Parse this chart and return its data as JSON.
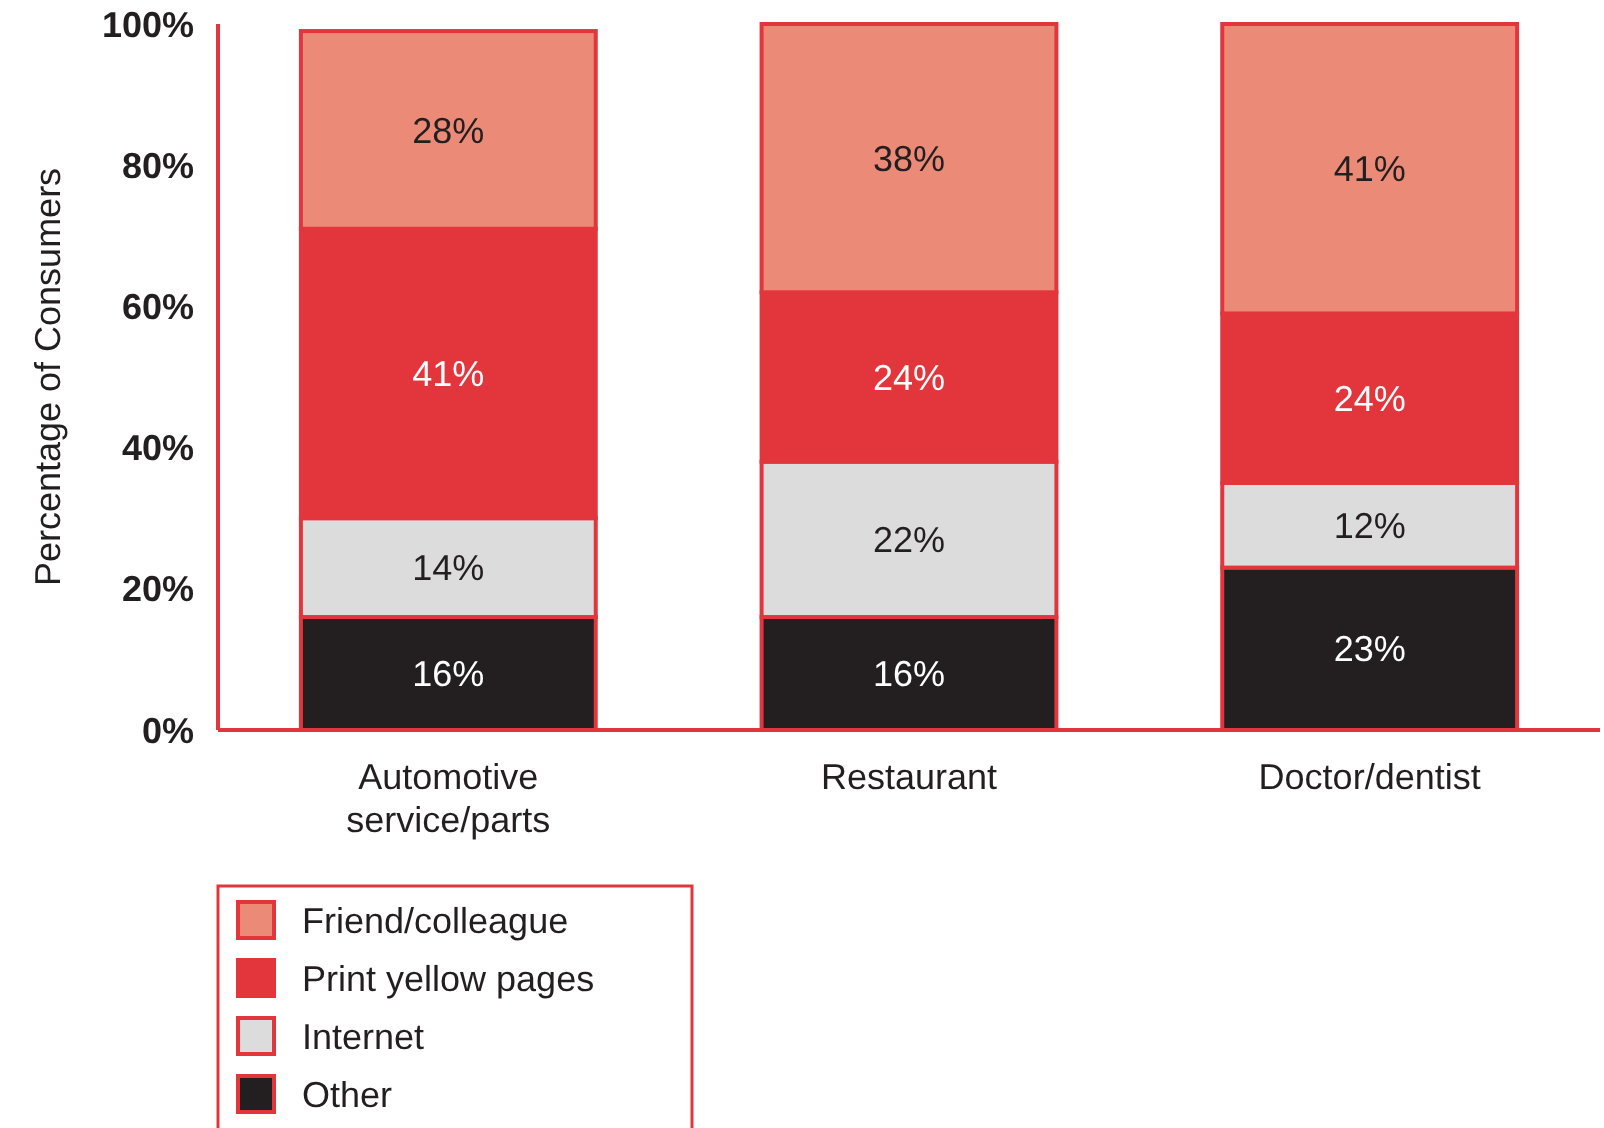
{
  "chart_data": {
    "type": "bar",
    "stacked": true,
    "ylabel": "Percentage of Consumers",
    "categories": [
      "Automotive service/parts",
      "Restaurant",
      "Doctor/dentist"
    ],
    "series": [
      {
        "name": "Other",
        "color": "#231f20",
        "values": [
          16,
          16,
          23
        ],
        "value_labels": [
          "16%",
          "16%",
          "23%"
        ]
      },
      {
        "name": "Internet",
        "color": "#dcdcdc",
        "values": [
          14,
          22,
          12
        ],
        "value_labels": [
          "14%",
          "22%",
          "12%"
        ]
      },
      {
        "name": "Print yellow pages",
        "color": "#e3363c",
        "values": [
          41,
          24,
          24
        ],
        "value_labels": [
          "41%",
          "24%",
          "24%"
        ]
      },
      {
        "name": "Friend/colleague",
        "color": "#ec8a78",
        "values": [
          28,
          38,
          41
        ],
        "value_labels": [
          "28%",
          "38%",
          "41%"
        ]
      }
    ],
    "ylim": [
      0,
      100
    ],
    "yticks": [
      {
        "value": 0,
        "label": "0%"
      },
      {
        "value": 20,
        "label": "20%"
      },
      {
        "value": 40,
        "label": "40%"
      },
      {
        "value": 60,
        "label": "60%"
      },
      {
        "value": 80,
        "label": "80%"
      },
      {
        "value": 100,
        "label": "100%"
      }
    ],
    "legend": "bottom",
    "grid": false
  }
}
